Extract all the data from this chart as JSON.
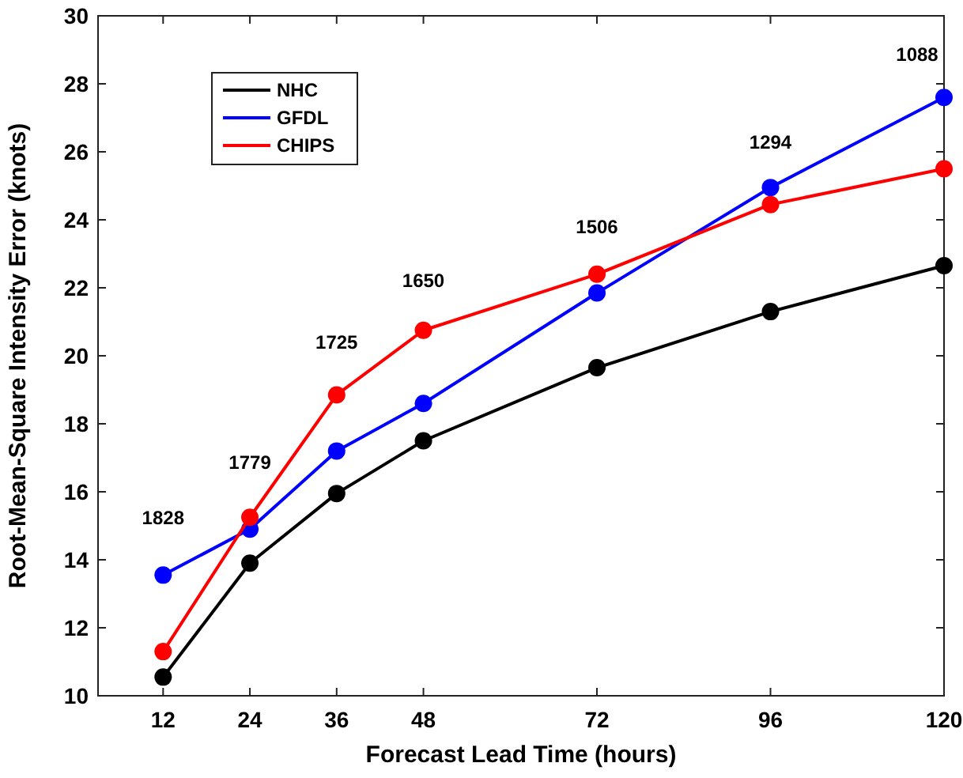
{
  "chart_data": {
    "type": "line",
    "xlabel": "Forecast Lead Time (hours)",
    "ylabel": "Root-Mean-Square Intensity Error (knots)",
    "x": [
      12,
      24,
      36,
      48,
      72,
      96,
      120
    ],
    "series": [
      {
        "name": "NHC",
        "color": "#000000",
        "values": [
          10.55,
          13.9,
          15.95,
          17.5,
          19.65,
          21.3,
          22.65
        ]
      },
      {
        "name": "GFDL",
        "color": "#0000ff",
        "values": [
          13.55,
          14.9,
          17.2,
          18.6,
          21.85,
          24.95,
          27.6
        ]
      },
      {
        "name": "CHIPS",
        "color": "#ff0000",
        "values": [
          11.3,
          15.25,
          18.85,
          20.75,
          22.4,
          24.45,
          25.5
        ]
      }
    ],
    "xlim": [
      3,
      120
    ],
    "xticks": [
      12,
      24,
      36,
      48,
      72,
      96,
      120
    ],
    "ylim": [
      10,
      30
    ],
    "yticks": [
      10,
      12,
      14,
      16,
      18,
      20,
      22,
      24,
      26,
      28,
      30
    ],
    "annotations": [
      "1828",
      "1779",
      "1725",
      "1650",
      "1506",
      "1294",
      "1088"
    ],
    "legend": "top left",
    "marker": "circle",
    "line_style": "solid",
    "grid": false
  }
}
